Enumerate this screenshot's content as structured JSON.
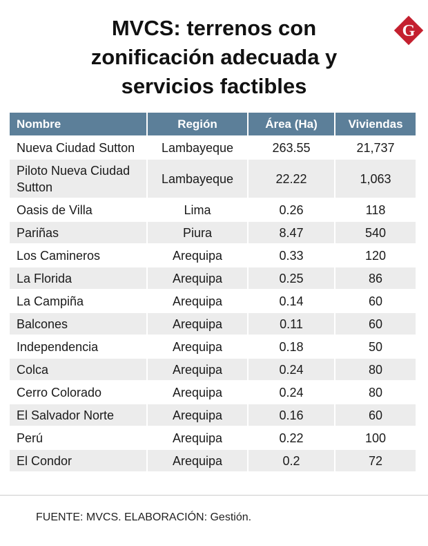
{
  "title": {
    "line1": "MVCS: terrenos con",
    "line2": "zonificación adecuada y",
    "line3": "servicios factibles"
  },
  "logo": {
    "letter": "G",
    "color": "#c4202f",
    "icon": "gestion-logo-icon"
  },
  "table": {
    "headers": [
      "Nombre",
      "Región",
      "Área (Ha)",
      "Viviendas"
    ],
    "header_color": "#5c7f99",
    "rows": [
      {
        "name": "Nueva Ciudad Sutton",
        "region": "Lambayeque",
        "area": "263.55",
        "viviendas": "21,737"
      },
      {
        "name": "Piloto Nueva Ciudad Sutton",
        "region": "Lambayeque",
        "area": "22.22",
        "viviendas": "1,063"
      },
      {
        "name": "Oasis de Villa",
        "region": "Lima",
        "area": "0.26",
        "viviendas": "118"
      },
      {
        "name": "Pariñas",
        "region": "Piura",
        "area": "8.47",
        "viviendas": "540"
      },
      {
        "name": "Los Camineros",
        "region": "Arequipa",
        "area": "0.33",
        "viviendas": "120"
      },
      {
        "name": "La Florida",
        "region": "Arequipa",
        "area": "0.25",
        "viviendas": "86"
      },
      {
        "name": "La Campiña",
        "region": "Arequipa",
        "area": "0.14",
        "viviendas": "60"
      },
      {
        "name": "Balcones",
        "region": "Arequipa",
        "area": "0.11",
        "viviendas": "60"
      },
      {
        "name": "Independencia",
        "region": "Arequipa",
        "area": "0.18",
        "viviendas": "50"
      },
      {
        "name": "Colca",
        "region": "Arequipa",
        "area": "0.24",
        "viviendas": "80"
      },
      {
        "name": "Cerro Colorado",
        "region": "Arequipa",
        "area": "0.24",
        "viviendas": "80"
      },
      {
        "name": "El Salvador Norte",
        "region": "Arequipa",
        "area": "0.16",
        "viviendas": "60"
      },
      {
        "name": "Perú",
        "region": "Arequipa",
        "area": "0.22",
        "viviendas": "100"
      },
      {
        "name": "El Condor",
        "region": "Arequipa",
        "area": "0.2",
        "viviendas": "72"
      }
    ]
  },
  "source": "FUENTE: MVCS. ELABORACIÓN: Gestión."
}
